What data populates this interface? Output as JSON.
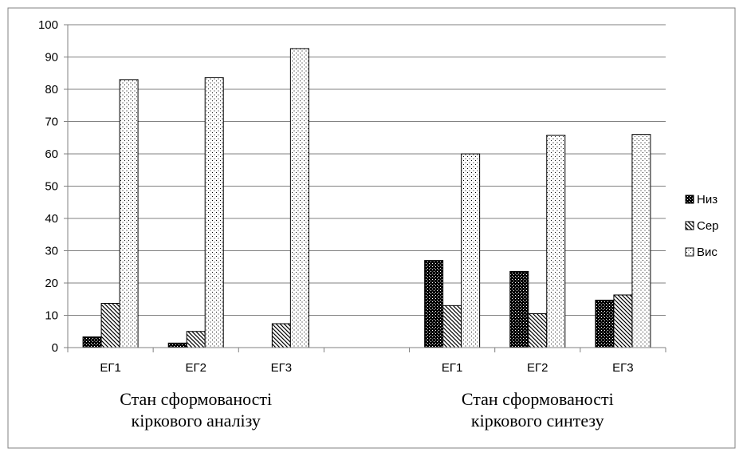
{
  "chart_data": {
    "type": "bar",
    "title": "",
    "xlabel": "",
    "ylabel": "",
    "ylim": [
      0,
      100
    ],
    "yticks": [
      0,
      10,
      20,
      30,
      40,
      50,
      60,
      70,
      80,
      90,
      100
    ],
    "grid": true,
    "legend_position": "right",
    "categories": [
      "ЕГ1",
      "ЕГ2",
      "ЕГ3",
      "",
      "ЕГ1",
      "ЕГ2",
      "ЕГ3"
    ],
    "groups": [
      {
        "label_lines": [
          "Стан сформованості",
          "кіркового аналізу"
        ],
        "categories": [
          0,
          1,
          2
        ]
      },
      {
        "label_lines": [
          "Стан сформованості",
          "кіркового синтезу"
        ],
        "categories": [
          4,
          5,
          6
        ]
      }
    ],
    "series": [
      {
        "name": "Низ",
        "pattern": "dark-dots",
        "values": [
          3.3,
          1.4,
          0,
          null,
          27,
          23.6,
          14.7
        ]
      },
      {
        "name": "Сер",
        "pattern": "diagonal-hatch",
        "values": [
          13.7,
          5,
          7.4,
          null,
          13,
          10.5,
          16.3
        ]
      },
      {
        "name": "Вис",
        "pattern": "light-dots",
        "values": [
          83,
          83.6,
          92.6,
          null,
          60,
          65.8,
          66
        ]
      }
    ]
  }
}
